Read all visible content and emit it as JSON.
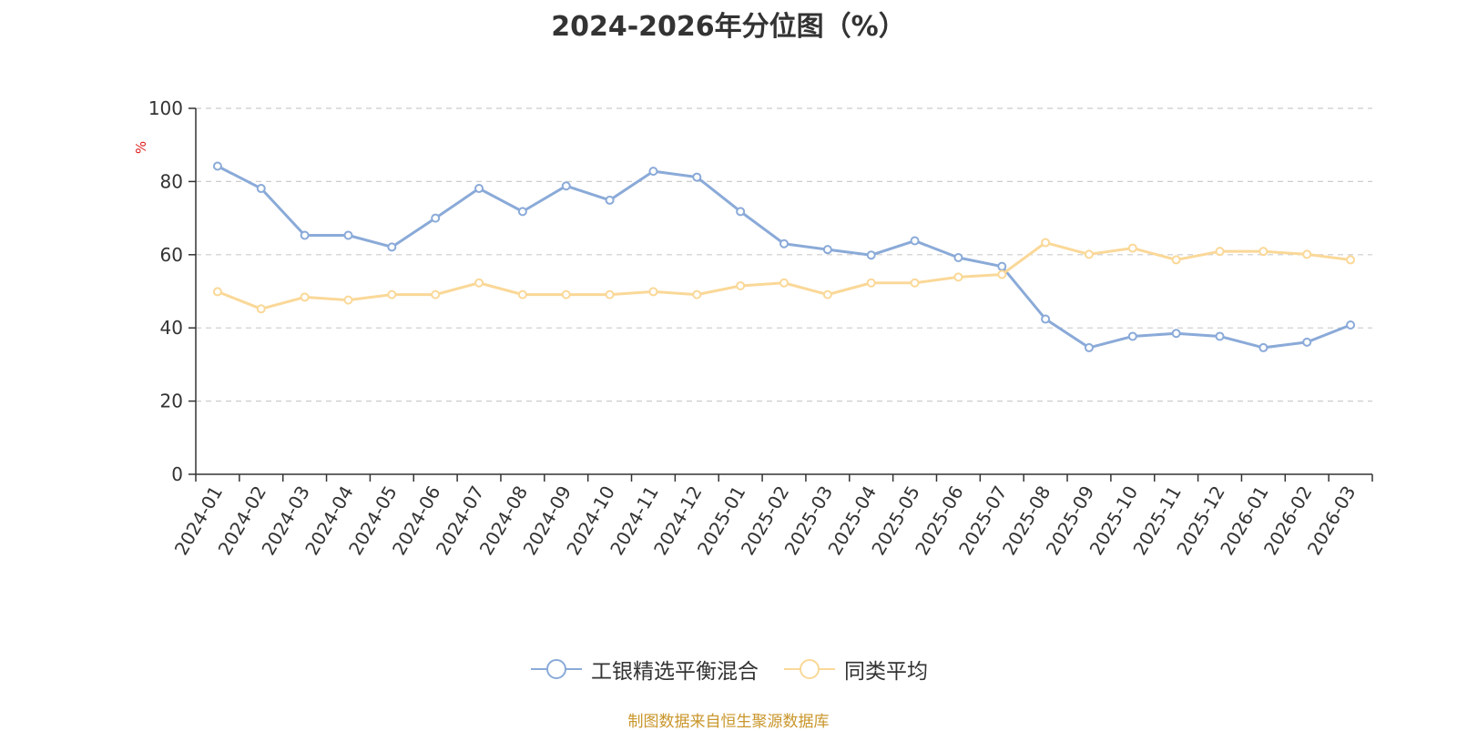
{
  "chart_data": {
    "type": "line",
    "title": "2024-2026年分位图（%）",
    "ylabel": "%",
    "ylim": [
      0,
      100
    ],
    "yticks": [
      0,
      20,
      40,
      60,
      80,
      100
    ],
    "grid": true,
    "legend_position": "bottom-center",
    "categories": [
      "2024-01",
      "2024-02",
      "2024-03",
      "2024-04",
      "2024-05",
      "2024-06",
      "2024-07",
      "2024-08",
      "2024-09",
      "2024-10",
      "2024-11",
      "2024-12",
      "2025-01",
      "2025-02",
      "2025-03",
      "2025-04",
      "2025-05",
      "2025-06",
      "2025-07",
      "2025-08",
      "2025-09",
      "2025-10",
      "2025-11",
      "2025-12",
      "2026-01",
      "2026-02",
      "2026-03"
    ],
    "series": [
      {
        "name": "工银精选平衡混合",
        "color": "#8aaad8",
        "values": [
          84.2,
          78.1,
          65.3,
          65.3,
          62.1,
          70.0,
          78.1,
          71.8,
          78.8,
          74.9,
          82.8,
          81.2,
          71.8,
          63.0,
          61.4,
          59.9,
          63.8,
          59.2,
          56.8,
          42.4,
          34.6,
          37.7,
          38.5,
          37.7,
          34.6,
          36.1,
          40.8
        ]
      },
      {
        "name": "同类平均",
        "color": "#fad898",
        "values": [
          49.9,
          45.2,
          48.4,
          47.6,
          49.1,
          49.1,
          52.3,
          49.1,
          49.1,
          49.1,
          49.9,
          49.1,
          51.5,
          52.3,
          49.1,
          52.3,
          52.3,
          53.9,
          54.6,
          63.3,
          60.1,
          61.8,
          58.6,
          60.9,
          60.9,
          60.1,
          58.6
        ]
      }
    ]
  },
  "footer": {
    "source": "制图数据来自恒生聚源数据库"
  }
}
